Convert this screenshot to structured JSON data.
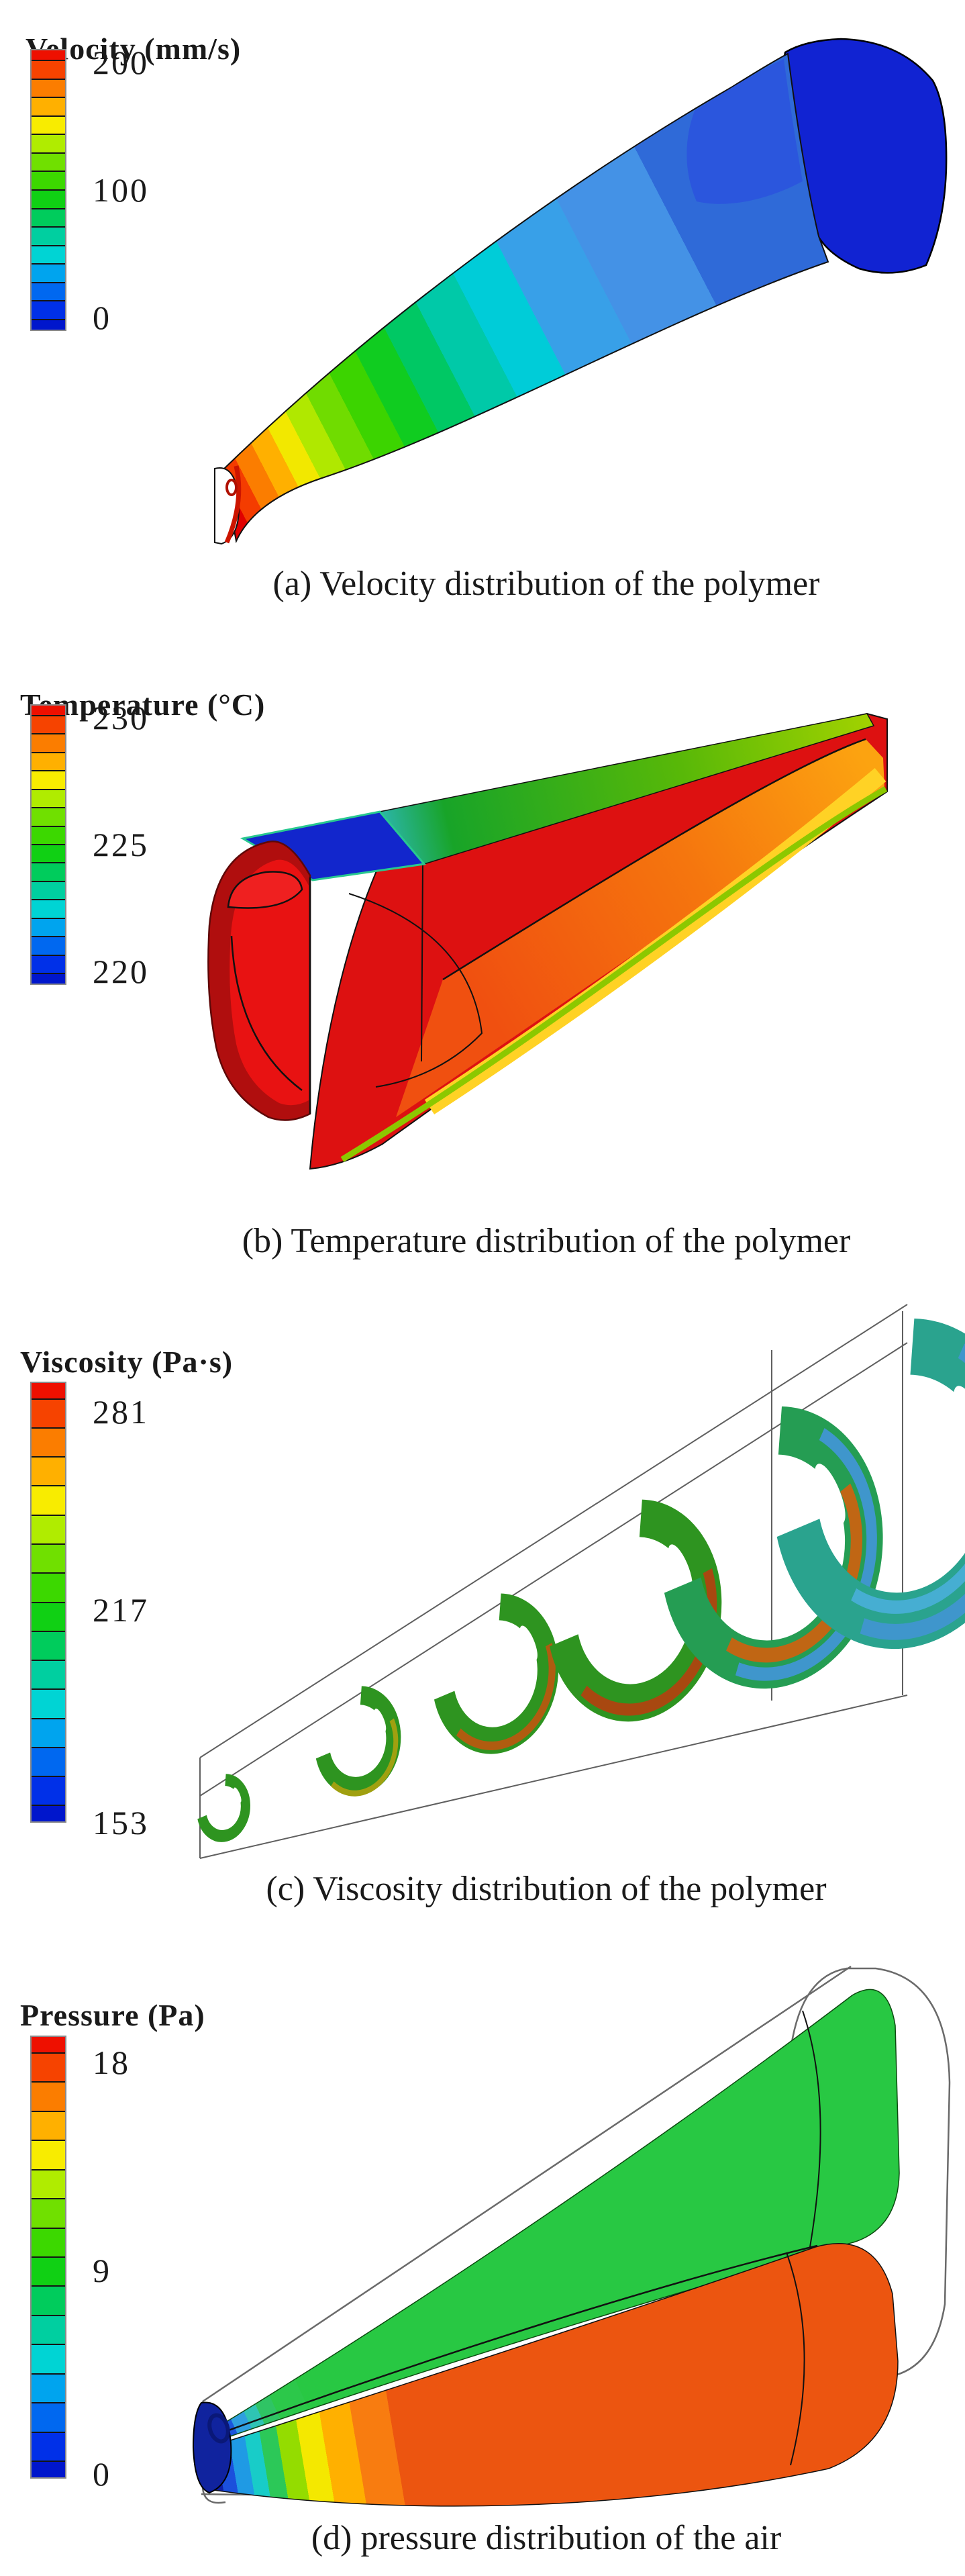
{
  "figure": {
    "colorbar_colors": [
      "#ee1000",
      "#f64300",
      "#fb7d00",
      "#ffb000",
      "#f8ec00",
      "#b0ec00",
      "#70e000",
      "#3cd800",
      "#10d014",
      "#00cc5c",
      "#00cfa0",
      "#00d4d4",
      "#00a4ee",
      "#0068f0",
      "#0030e8",
      "#0016cc"
    ],
    "panels": [
      {
        "id": "a",
        "title": "Velocity (mm/s)",
        "ticks": [
          "200",
          "100",
          "0"
        ],
        "caption": "(a) Velocity distribution of the polymer"
      },
      {
        "id": "b",
        "title": "Temperature (°C)",
        "ticks": [
          "230",
          "225",
          "220"
        ],
        "caption": "(b) Temperature distribution of the polymer"
      },
      {
        "id": "c",
        "title": "Viscosity (Pa·s)",
        "ticks": [
          "281",
          "217",
          "153"
        ],
        "caption": "(c) Viscosity distribution of the polymer"
      },
      {
        "id": "d",
        "title": "Pressure (Pa)",
        "ticks": [
          "18",
          "9",
          "0"
        ],
        "caption": "(d) pressure distribution of the air"
      }
    ]
  },
  "chart_data": [
    {
      "type": "heatmap",
      "id": "a",
      "title": "Velocity (mm/s)",
      "units": "mm/s",
      "colorbar_ticks": [
        200,
        100,
        0
      ],
      "range": {
        "min": 0,
        "max": 200
      },
      "legend_position": "left",
      "caption": "(a) Velocity distribution of the polymer",
      "description": "3D rainbow contour of polymer melt velocity on a tapered parison: ~200 mm/s (red) at the small die tip at lower-left, decreasing through orange/yellow/green/cyan to ~0 (blue) at the large rounded outlet cap at upper-right."
    },
    {
      "type": "heatmap",
      "id": "b",
      "title": "Temperature (°C)",
      "units": "°C",
      "colorbar_ticks": [
        230,
        225,
        220
      ],
      "range": {
        "min": 220,
        "max": 230
      },
      "legend_position": "left",
      "caption": "(b) Temperature distribution of the polymer",
      "description": "3D contour of melt temperature: bulk of the cut parison is ~230 °C (red) with orange/yellow streaks inside the trough, green ~225 °C edges along the top/bottom surfaces, and a ~220 °C (blue) patch on the top face of the large left end."
    },
    {
      "type": "heatmap",
      "id": "c",
      "title": "Viscosity (Pa·s)",
      "units": "Pa·s",
      "colorbar_ticks": [
        281,
        217,
        153
      ],
      "range": {
        "min": 153,
        "max": 281
      },
      "legend_position": "left",
      "caption": "(c) Viscosity distribution of the polymer",
      "description": "Six C-shaped cross-section slices along a wireframe tapered die, growing from left to right: mostly green (~217 Pa·s) with orange-brown high-viscosity rims (~281) on the outer right edges of middle slices and teal/blue lower-viscosity zones on the largest slices; each slice has an elongated white hole near its top."
    },
    {
      "type": "heatmap",
      "id": "d",
      "title": "Pressure (Pa)",
      "units": "Pa",
      "colorbar_ticks": [
        18,
        9,
        0
      ],
      "range": {
        "min": 0,
        "max": 18
      },
      "legend_position": "left",
      "caption": "(d) pressure distribution of the air",
      "description": "Air pressure inside the wireframe die: two nested cones — upper cone mostly green (~7–9 Pa), lower cone mostly orange-red (~13–18 Pa); both fade through yellow/green/cyan/blue rainbow bands to a dark-blue ~0 Pa tip at the small left end."
    }
  ]
}
